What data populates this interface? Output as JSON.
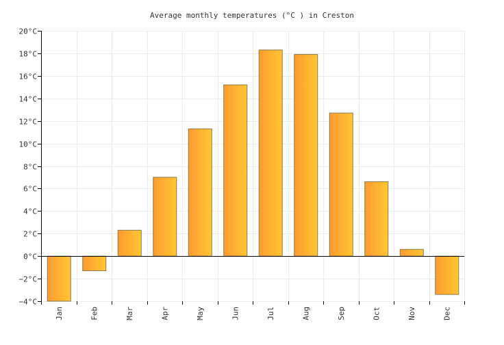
{
  "chart_data": {
    "type": "bar",
    "title": "Average monthly temperatures (°C ) in Creston",
    "xlabel": "",
    "ylabel": "",
    "categories": [
      "Jan",
      "Feb",
      "Mar",
      "Apr",
      "May",
      "Jun",
      "Jul",
      "Aug",
      "Sep",
      "Oct",
      "Nov",
      "Dec"
    ],
    "values": [
      -4.0,
      -1.3,
      2.3,
      7.0,
      11.3,
      15.2,
      18.3,
      17.9,
      12.7,
      6.6,
      0.6,
      -3.4
    ],
    "ylim": [
      -4,
      20
    ],
    "y_ticks": [
      -4,
      -2,
      0,
      2,
      4,
      6,
      8,
      10,
      12,
      14,
      16,
      18,
      20
    ],
    "y_tick_labels": [
      "−4°C",
      "−2°C",
      "0°C",
      "2°C",
      "4°C",
      "6°C",
      "8°C",
      "10°C",
      "12°C",
      "14°C",
      "16°C",
      "18°C",
      "20°C"
    ],
    "grid": true,
    "legend": "none",
    "colors": {
      "bar_gradient_start": "#fd9b31",
      "bar_gradient_end": "#ffc631",
      "bar_stroke": "#8b7a4a",
      "grid": "#ececec",
      "axis": "#000000",
      "text": "#333333"
    }
  }
}
